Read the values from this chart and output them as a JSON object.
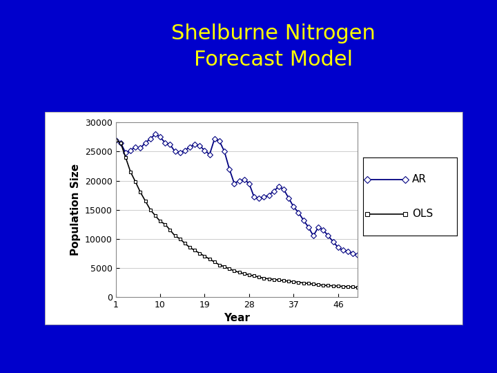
{
  "title_line1": "Shelburne Nitrogen",
  "title_line2": "Forecast Model",
  "title_color": "#FFFF00",
  "bg_color": "#0000CC",
  "plot_bg": "#FFFFFF",
  "panel_bg": "#FFFFFF",
  "xlabel": "Year",
  "ylabel": "Population Size",
  "xticks": [
    1,
    10,
    19,
    28,
    37,
    46
  ],
  "yticks": [
    0,
    5000,
    10000,
    15000,
    20000,
    25000,
    30000
  ],
  "ylim": [
    0,
    30000
  ],
  "xlim": [
    1,
    50
  ],
  "ar_color": "#000080",
  "ols_color": "#000000",
  "ar_values": [
    27000,
    26500,
    24800,
    25200,
    25800,
    25600,
    26500,
    27200,
    28000,
    27500,
    26500,
    26200,
    25000,
    24800,
    25200,
    25800,
    26200,
    26000,
    25200,
    24500,
    27200,
    26800,
    25000,
    22000,
    19500,
    20000,
    20200,
    19500,
    17200,
    17000,
    17200,
    17500,
    18200,
    19000,
    18500,
    17000,
    15500,
    14500,
    13200,
    12000,
    10500,
    12000,
    11500,
    10500,
    9500,
    8500,
    8000,
    7800,
    7500,
    7200
  ],
  "ols_values": [
    27000,
    26500,
    24000,
    21500,
    19800,
    18000,
    16500,
    15000,
    14000,
    13000,
    12500,
    11500,
    10500,
    10000,
    9200,
    8500,
    8000,
    7500,
    7000,
    6500,
    6000,
    5500,
    5200,
    4800,
    4500,
    4200,
    4000,
    3800,
    3600,
    3400,
    3200,
    3100,
    3000,
    2900,
    2800,
    2700,
    2600,
    2500,
    2400,
    2300,
    2200,
    2100,
    2000,
    1950,
    1900,
    1850,
    1800,
    1750,
    1700,
    1600
  ],
  "title_fontsize": 22,
  "axis_label_fontsize": 11,
  "tick_fontsize": 9
}
